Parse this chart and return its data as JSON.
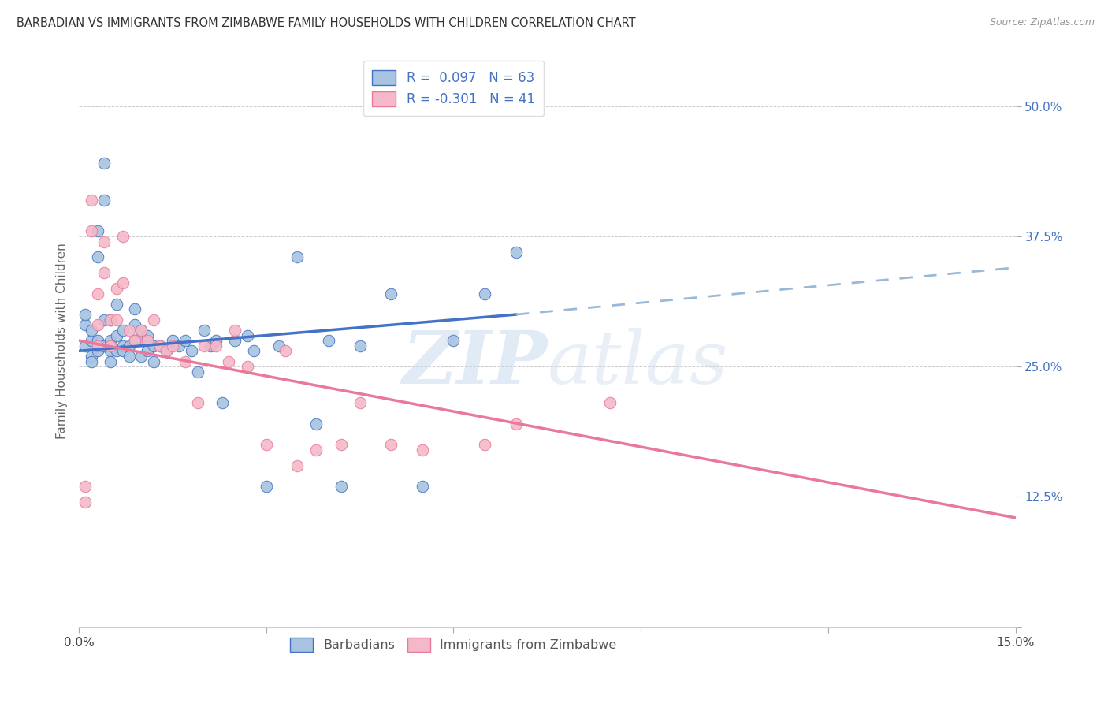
{
  "title": "BARBADIAN VS IMMIGRANTS FROM ZIMBABWE FAMILY HOUSEHOLDS WITH CHILDREN CORRELATION CHART",
  "source": "Source: ZipAtlas.com",
  "ylabel": "Family Households with Children",
  "xlim": [
    0.0,
    0.15
  ],
  "ylim": [
    0.0,
    0.55
  ],
  "color_blue": "#a8c4e0",
  "color_pink": "#f4b8c8",
  "line_blue": "#4472c4",
  "line_pink": "#e8799a",
  "line_dash_blue": "#9ab8d8",
  "watermark_zip": "ZIP",
  "watermark_atlas": "atlas",
  "background_color": "#ffffff",
  "legend_r1": "R =  0.097",
  "legend_n1": "N = 63",
  "legend_r2": "R = -0.301",
  "legend_n2": "N = 41",
  "barbadians_x": [
    0.001,
    0.001,
    0.001,
    0.002,
    0.002,
    0.002,
    0.002,
    0.003,
    0.003,
    0.003,
    0.003,
    0.004,
    0.004,
    0.004,
    0.004,
    0.005,
    0.005,
    0.005,
    0.005,
    0.006,
    0.006,
    0.006,
    0.007,
    0.007,
    0.007,
    0.008,
    0.008,
    0.009,
    0.009,
    0.009,
    0.01,
    0.01,
    0.01,
    0.011,
    0.011,
    0.012,
    0.012,
    0.013,
    0.014,
    0.015,
    0.016,
    0.017,
    0.018,
    0.019,
    0.02,
    0.021,
    0.022,
    0.023,
    0.025,
    0.027,
    0.028,
    0.03,
    0.032,
    0.035,
    0.038,
    0.04,
    0.042,
    0.045,
    0.05,
    0.055,
    0.06,
    0.065,
    0.07
  ],
  "barbadians_y": [
    0.27,
    0.29,
    0.3,
    0.275,
    0.285,
    0.26,
    0.255,
    0.38,
    0.355,
    0.275,
    0.265,
    0.445,
    0.41,
    0.295,
    0.27,
    0.295,
    0.275,
    0.265,
    0.255,
    0.31,
    0.28,
    0.265,
    0.27,
    0.285,
    0.265,
    0.27,
    0.26,
    0.305,
    0.29,
    0.275,
    0.285,
    0.275,
    0.26,
    0.28,
    0.265,
    0.27,
    0.255,
    0.27,
    0.265,
    0.275,
    0.27,
    0.275,
    0.265,
    0.245,
    0.285,
    0.27,
    0.275,
    0.215,
    0.275,
    0.28,
    0.265,
    0.135,
    0.27,
    0.355,
    0.195,
    0.275,
    0.135,
    0.27,
    0.32,
    0.135,
    0.275,
    0.32,
    0.36
  ],
  "zimbabwe_x": [
    0.001,
    0.001,
    0.002,
    0.002,
    0.003,
    0.003,
    0.003,
    0.004,
    0.004,
    0.005,
    0.005,
    0.006,
    0.006,
    0.007,
    0.007,
    0.008,
    0.009,
    0.01,
    0.011,
    0.012,
    0.013,
    0.014,
    0.015,
    0.017,
    0.019,
    0.02,
    0.022,
    0.024,
    0.025,
    0.027,
    0.03,
    0.033,
    0.035,
    0.038,
    0.042,
    0.045,
    0.05,
    0.055,
    0.065,
    0.07,
    0.085
  ],
  "zimbabwe_y": [
    0.135,
    0.12,
    0.41,
    0.38,
    0.32,
    0.29,
    0.27,
    0.37,
    0.34,
    0.295,
    0.27,
    0.325,
    0.295,
    0.375,
    0.33,
    0.285,
    0.275,
    0.285,
    0.275,
    0.295,
    0.27,
    0.265,
    0.27,
    0.255,
    0.215,
    0.27,
    0.27,
    0.255,
    0.285,
    0.25,
    0.175,
    0.265,
    0.155,
    0.17,
    0.175,
    0.215,
    0.175,
    0.17,
    0.175,
    0.195,
    0.215
  ]
}
